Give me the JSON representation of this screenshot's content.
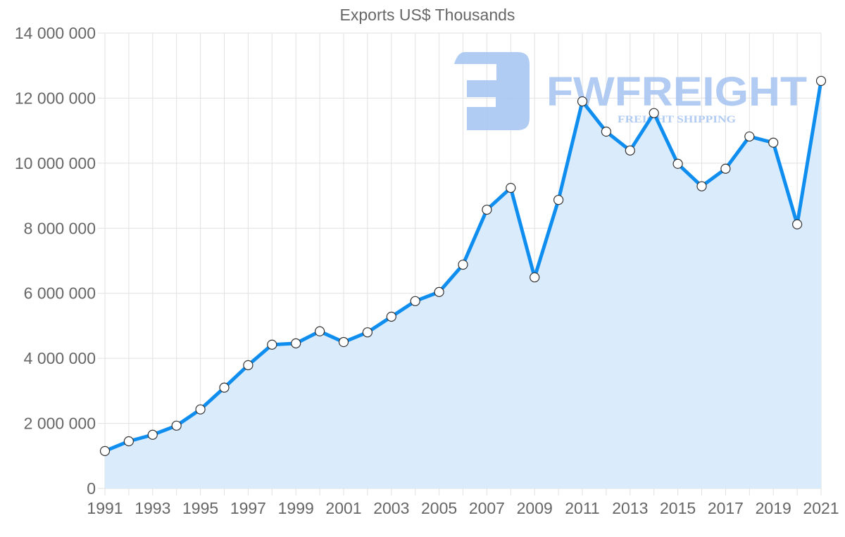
{
  "chart_data": {
    "type": "area",
    "title": "Exports US$ Thousands",
    "xlabel": "",
    "ylabel": "",
    "x": [
      1991,
      1992,
      1993,
      1994,
      1995,
      1996,
      1997,
      1998,
      1999,
      2000,
      2001,
      2002,
      2003,
      2004,
      2005,
      2006,
      2007,
      2008,
      2009,
      2010,
      2011,
      2012,
      2013,
      2014,
      2015,
      2016,
      2017,
      2018,
      2019,
      2020,
      2021
    ],
    "series": [
      {
        "name": "Exports US$ Thousands",
        "color": "#0f8ef0",
        "fill": "#d8ebfc",
        "values": [
          1150000,
          1450000,
          1650000,
          1930000,
          2430000,
          3100000,
          3790000,
          4420000,
          4460000,
          4830000,
          4500000,
          4800000,
          5280000,
          5760000,
          6040000,
          6880000,
          8570000,
          9240000,
          6490000,
          8870000,
          11900000,
          10970000,
          10390000,
          11540000,
          9980000,
          9290000,
          9830000,
          10820000,
          10630000,
          8120000,
          12530000
        ]
      }
    ],
    "xtick_labels": [
      "1991",
      "1993",
      "1995",
      "1997",
      "1999",
      "2001",
      "2003",
      "2005",
      "2007",
      "2009",
      "2011",
      "2013",
      "2015",
      "2017",
      "2019",
      "2021"
    ],
    "ytick_labels": [
      "0",
      "2 000 000",
      "4 000 000",
      "6 000 000",
      "8 000 000",
      "10 000 000",
      "12 000 000",
      "14 000 000"
    ],
    "ylim": [
      0,
      14000000
    ],
    "xlim": [
      1991,
      2021
    ],
    "grid": true,
    "legend": null
  },
  "watermark": {
    "brand": "FWFREIGHT",
    "tagline": "FREIGHT SHIPPING",
    "color": "#a9c6f2"
  }
}
